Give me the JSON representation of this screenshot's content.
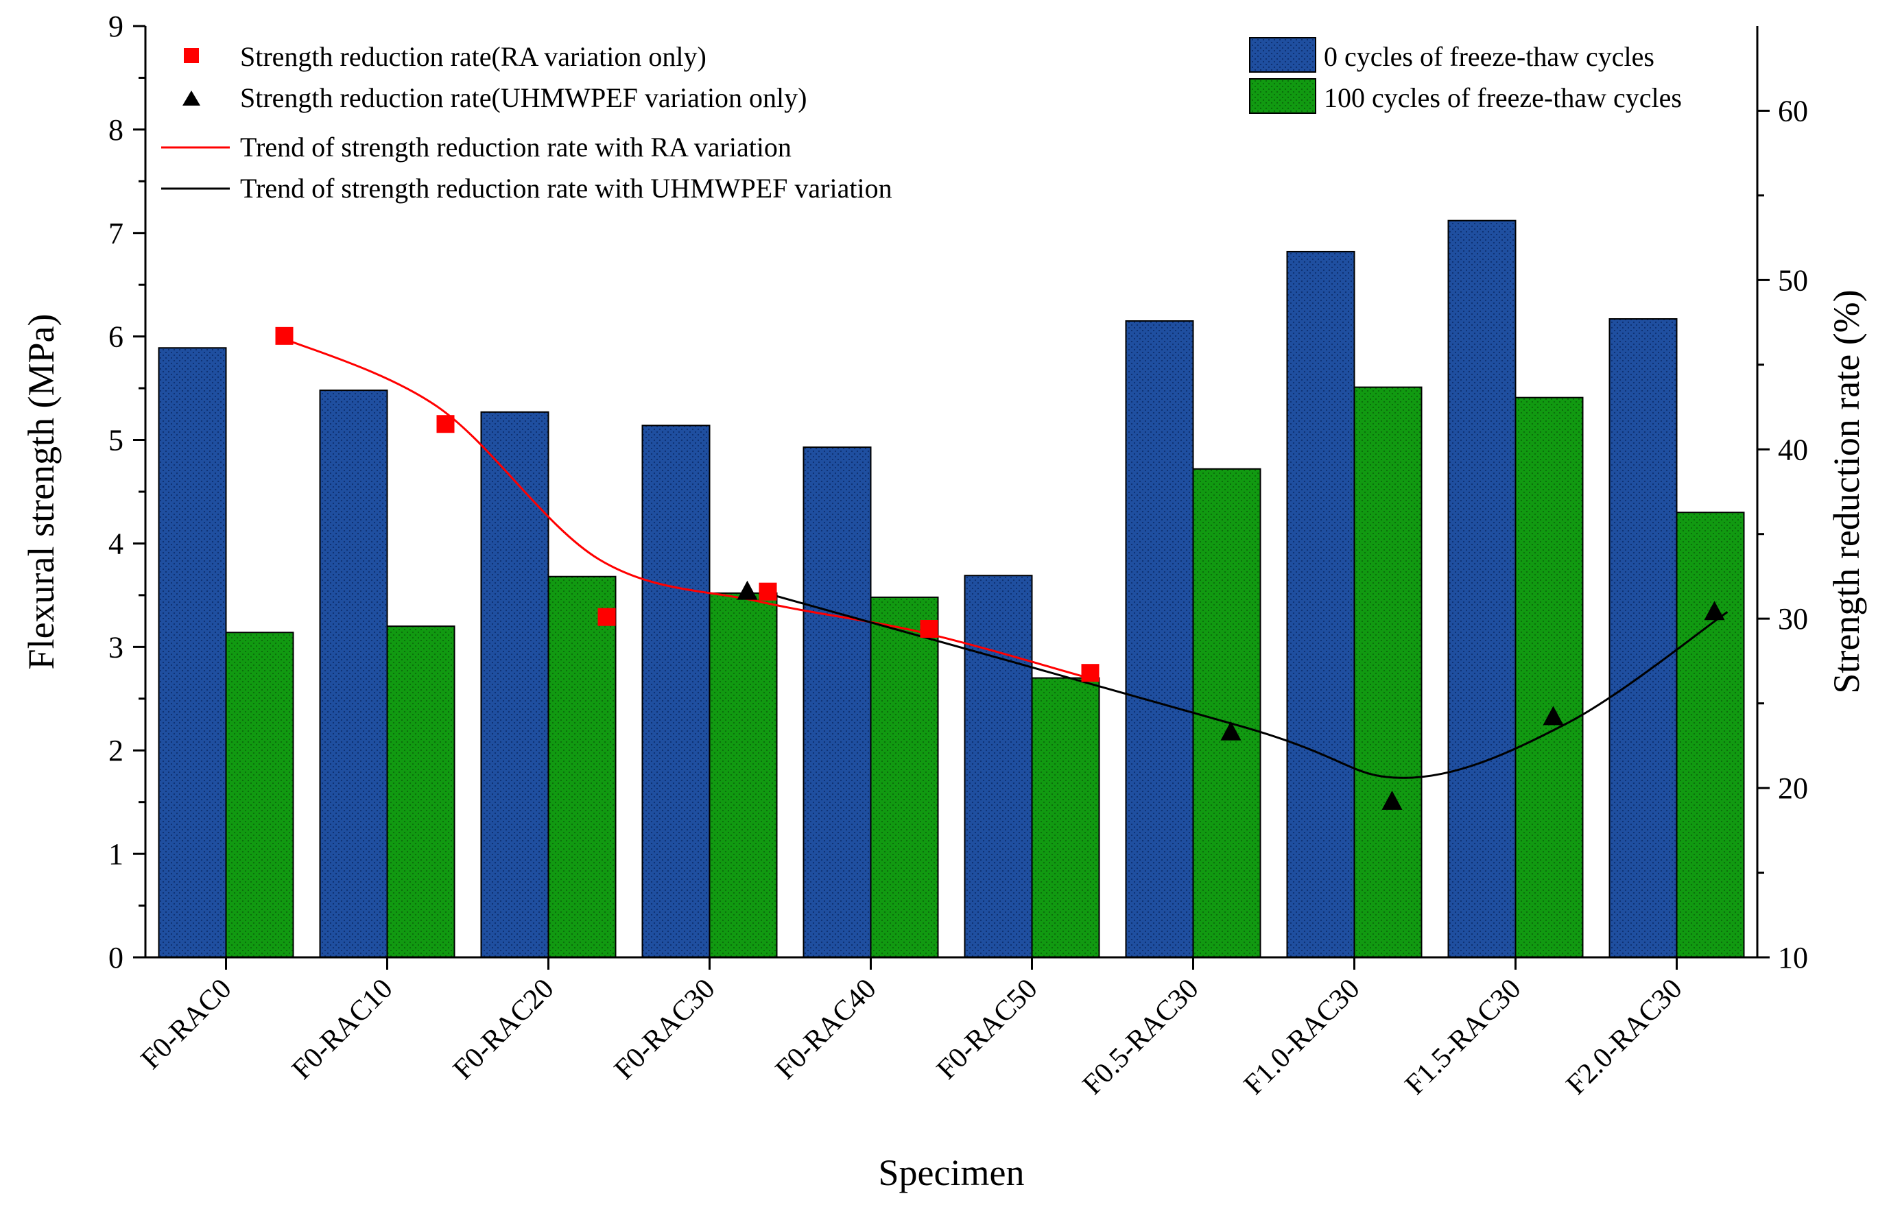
{
  "chart_data": {
    "type": "bar",
    "categories": [
      "F0-RAC0",
      "F0-RAC10",
      "F0-RAC20",
      "F0-RAC30",
      "F0-RAC40",
      "F0-RAC50",
      "F0.5-RAC30",
      "F1.0-RAC30",
      "F1.5-RAC30",
      "F2.0-RAC30"
    ],
    "xlabel": "Specimen",
    "ylabel": "Flexural strength (MPa)",
    "y2label": "Strength reduction rate (%)",
    "ylim": [
      0,
      9
    ],
    "y2lim": [
      10,
      65
    ],
    "yticks": [
      "0",
      "1",
      "2",
      "3",
      "4",
      "5",
      "6",
      "7",
      "8",
      "9"
    ],
    "y2ticks": [
      "10",
      "20",
      "30",
      "40",
      "50",
      "60"
    ],
    "grid": false,
    "legend_left_position": "top-left",
    "legend_right_position": "top-right",
    "series": [
      {
        "name": "0 cycles of freeze-thaw cycles",
        "type": "bar",
        "axis": "left",
        "color": "#1f4fa0",
        "values": [
          5.89,
          5.48,
          5.27,
          5.14,
          4.93,
          3.69,
          6.15,
          6.82,
          7.12,
          6.17
        ]
      },
      {
        "name": "100 cycles of freeze-thaw cycles",
        "type": "bar",
        "axis": "left",
        "color": "#119a11",
        "values": [
          3.14,
          3.2,
          3.68,
          3.52,
          3.48,
          2.7,
          4.72,
          5.51,
          5.41,
          4.3
        ]
      },
      {
        "name": "Strength reduction rate(RA variation only)",
        "type": "scatter",
        "marker": "square",
        "axis": "right",
        "color": "#ff0000",
        "x": [
          "F0-RAC0",
          "F0-RAC10",
          "F0-RAC20",
          "F0-RAC30",
          "F0-RAC40",
          "F0-RAC50"
        ],
        "values": [
          46.7,
          41.5,
          30.1,
          31.6,
          29.4,
          26.8
        ]
      },
      {
        "name": "Strength reduction rate(UHMWPEF variation only)",
        "type": "scatter",
        "marker": "triangle",
        "axis": "right",
        "color": "#000000",
        "x": [
          "F0-RAC30",
          "F0.5-RAC30",
          "F1.0-RAC30",
          "F1.5-RAC30",
          "F2.0-RAC30"
        ],
        "values": [
          31.6,
          23.3,
          19.2,
          24.2,
          30.4
        ]
      },
      {
        "name": "Trend of strength reduction rate with RA variation",
        "type": "line",
        "axis": "right",
        "color": "#ff0000",
        "x": [
          "F0-RAC0",
          "F0-RAC10",
          "F0-RAC20",
          "F0-RAC30",
          "F0-RAC40",
          "F0-RAC50"
        ],
        "values": [
          46.7,
          42.5,
          33.5,
          31.0,
          29.2,
          26.6
        ]
      },
      {
        "name": "Trend of strength reduction rate with UHMWPEF variation",
        "type": "line",
        "axis": "right",
        "color": "#000000",
        "x": [
          "F0-RAC30",
          "F0.5-RAC30",
          "F1.0-RAC30",
          "F1.5-RAC30",
          "F2.0-RAC30"
        ],
        "values": [
          31.6,
          23.6,
          20.6,
          23.8,
          30.4
        ]
      }
    ]
  }
}
